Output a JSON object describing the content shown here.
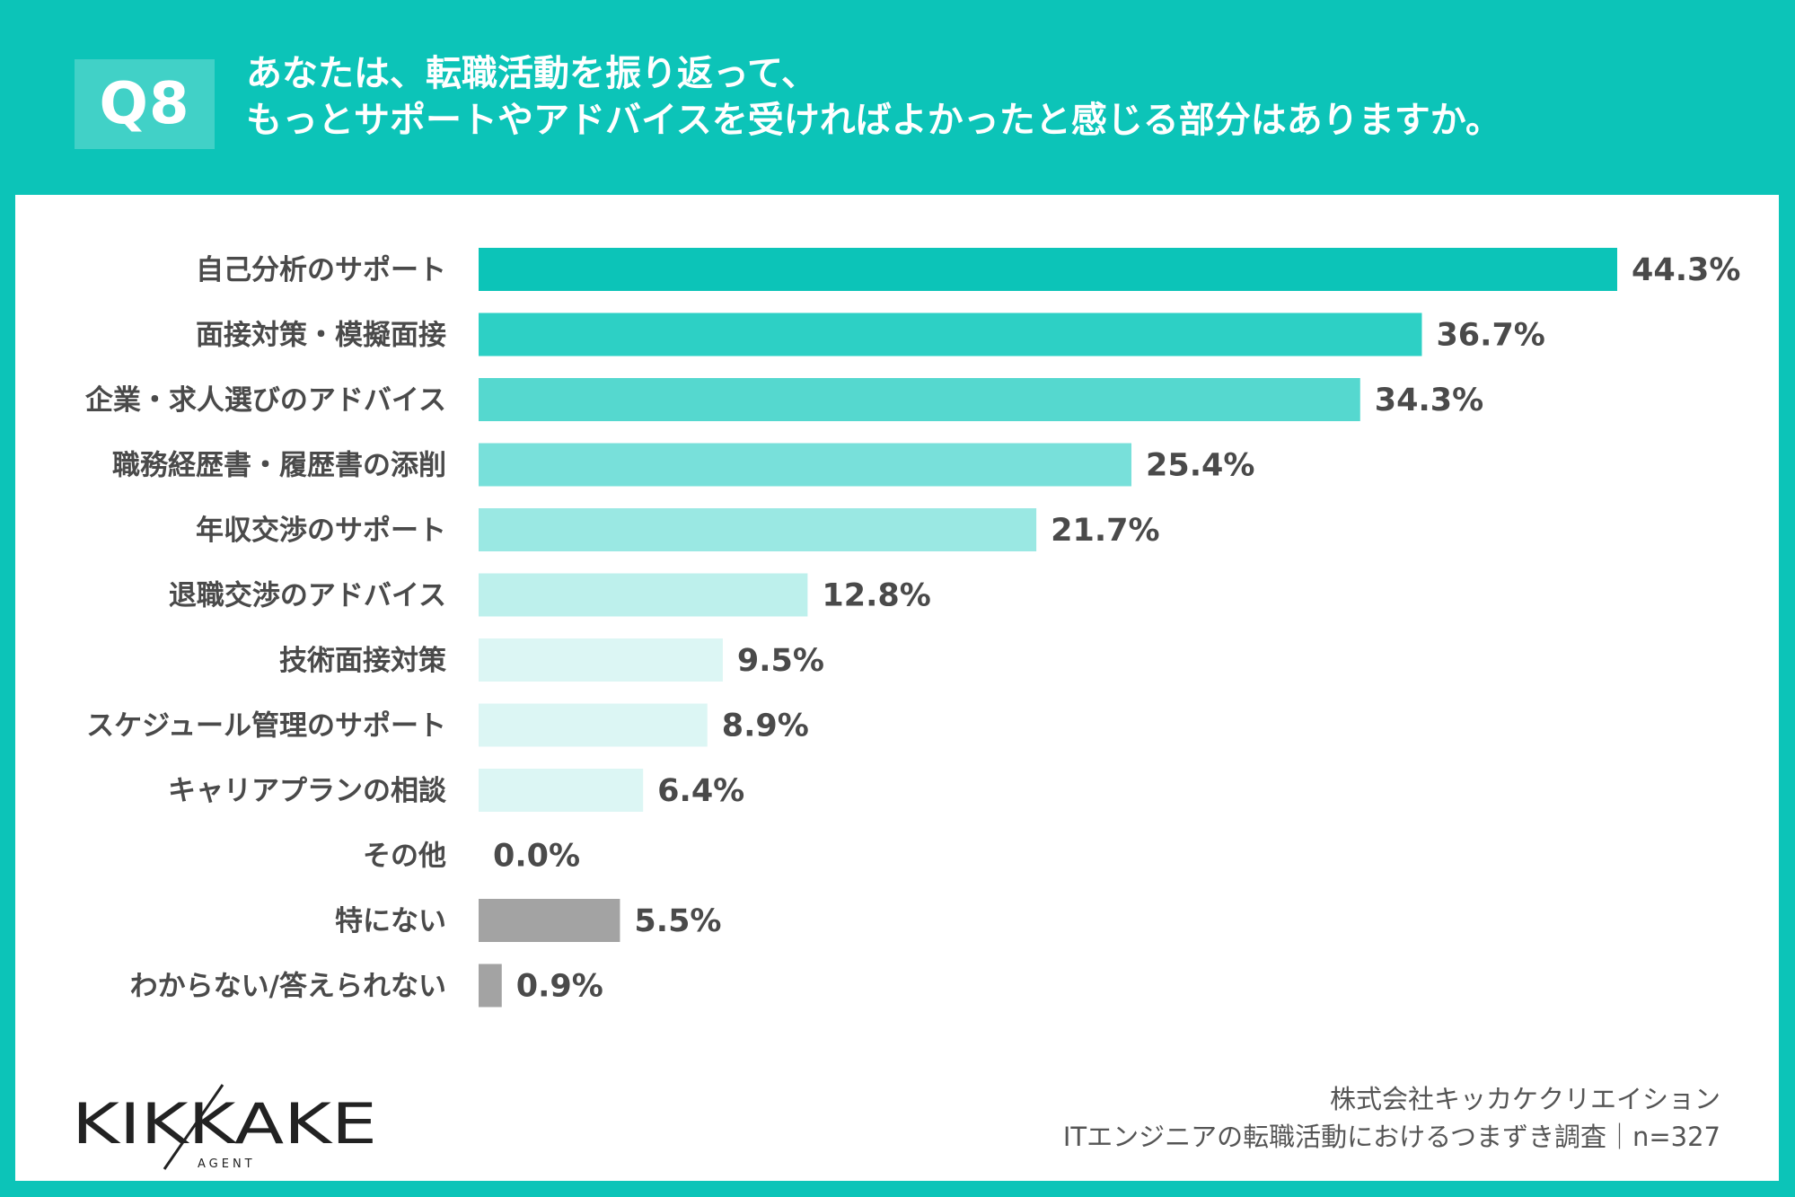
{
  "header": {
    "badge": "Q8",
    "title_line1": "あなたは、転職活動を振り返って、",
    "title_line2": "もっとサポートやアドバイスを受ければよかったと感じる部分はありますか。"
  },
  "chart_data": {
    "type": "bar",
    "orientation": "horizontal",
    "categories": [
      "自己分析のサポート",
      "面接対策・模擬面接",
      "企業・求人選びのアドバイス",
      "職務経歴書・履歴書の添削",
      "年収交渉のサポート",
      "退職交渉のアドバイス",
      "技術面接対策",
      "スケジュール管理のサポート",
      "キャリアプランの相談",
      "その他",
      "特にない",
      "わからない/答えられない"
    ],
    "values": [
      44.3,
      36.7,
      34.3,
      25.4,
      21.7,
      12.8,
      9.5,
      8.9,
      6.4,
      0.0,
      5.5,
      0.9
    ],
    "value_labels": [
      "44.3%",
      "36.7%",
      "34.3%",
      "25.4%",
      "21.7%",
      "12.8%",
      "9.5%",
      "8.9%",
      "6.4%",
      "0.0%",
      "5.5%",
      "0.9%"
    ],
    "colors": [
      "#0cc4b8",
      "#2dd0c5",
      "#55d8cf",
      "#78e0da",
      "#9ae8e3",
      "#bdf0ec",
      "#dcf6f4",
      "#dcf6f4",
      "#dcf6f4",
      "#dcf6f4",
      "#a3a3a3",
      "#a3a3a3"
    ],
    "xlim": [
      0,
      44.3
    ],
    "title": "",
    "xlabel": "",
    "ylabel": ""
  },
  "footer": {
    "logo_text": "KIKKAKE",
    "logo_sub": "AGENT",
    "company": "株式会社キッカケクリエイション",
    "survey": "ITエンジニアの転職活動におけるつまずき調査｜n=327"
  },
  "colors": {
    "accent": "#0cc4b8",
    "label_text": "#4a4a4a",
    "gray_bar": "#a3a3a3"
  }
}
